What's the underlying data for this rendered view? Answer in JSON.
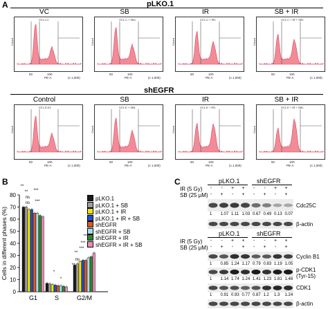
{
  "panel_a": {
    "letter": "A",
    "plko_title": "pLKO.1",
    "shegfr_title": "shEGFR",
    "x_axis_label": "PE-A",
    "x_axis_scale": "(x 1,000)",
    "y_axis_label": "Count",
    "x_ticks": [
      "50",
      "100"
    ],
    "plko_plots": [
      {
        "title": "VC",
        "gate": "VC1-C1"
      },
      {
        "title": "SB",
        "gate": "VC1-C + SB1"
      },
      {
        "title": "IR",
        "gate": "VC1-C + IR1"
      },
      {
        "title": "SB + IR",
        "gate": "VC1-C + IR + SB1"
      }
    ],
    "shegfr_plots": [
      {
        "title": "Control",
        "gate": "VC1-E-E1"
      },
      {
        "title": "SB",
        "gate": "VC1-E + SB1"
      },
      {
        "title": "IR",
        "gate": "VC1-E + IR1"
      },
      {
        "title": "SB + IR",
        "gate": "VC1-E + IR + SB1"
      }
    ]
  },
  "panel_b": {
    "letter": "B",
    "chart_data": {
      "type": "bar",
      "ylabel": "Cells in different phases (%)",
      "categories": [
        "G1",
        "S",
        "G2/M"
      ],
      "ylim": [
        0,
        80
      ],
      "yticks": [
        "0",
        "10",
        "20",
        "30",
        "40",
        "50",
        "60",
        "70",
        "80"
      ],
      "series": [
        {
          "name": "pLKO.1",
          "color": "#1a1a1a",
          "values": [
            70,
            7,
            22
          ]
        },
        {
          "name": "pLKO.1 + SB",
          "color": "#9e9e9e",
          "values": [
            70,
            6.5,
            23
          ]
        },
        {
          "name": "pLKO.1 + IR",
          "color": "#f2e500",
          "values": [
            68,
            6,
            25
          ]
        },
        {
          "name": "pLKO.1 + IR + SB",
          "color": "#1f4fd1",
          "values": [
            68,
            5.5,
            26
          ]
        },
        {
          "name": "shEGFR",
          "color": "#e05a1a",
          "values": [
            65,
            5,
            26
          ]
        },
        {
          "name": "shEGFR + SB",
          "color": "#a8dcef",
          "values": [
            65,
            5,
            28
          ]
        },
        {
          "name": "shEGFR + IR",
          "color": "#2d8a2d",
          "values": [
            63,
            4.5,
            29
          ]
        },
        {
          "name": "shEGFR + IR + SB",
          "color": "#f08ab8",
          "values": [
            62,
            4,
            32
          ]
        }
      ],
      "annotations": [
        "**",
        "**",
        "*",
        "ns",
        "ns",
        "***",
        "***",
        "*",
        "**",
        "***",
        "***",
        "ns",
        "**",
        "***"
      ]
    }
  },
  "panel_c": {
    "letter": "C",
    "top": {
      "group1": "pLKO.1",
      "group2": "shEGFR",
      "ir_label": "IR (5 Gy)",
      "sb_label": "SB (25 μM)",
      "ir_signs": [
        "-",
        "-",
        "+",
        "+",
        "-",
        "-",
        "+",
        "+"
      ],
      "sb_signs": [
        "-",
        "+",
        "-",
        "+",
        "-",
        "+",
        "-",
        "+"
      ],
      "blot1_label": "Cdc25C",
      "blot1_values": [
        "1",
        "1.07",
        "1.11",
        "1.03",
        "0.67",
        "0.49",
        "0.13",
        "0.07"
      ],
      "blot2_label": "β-actin"
    },
    "bottom": {
      "group1": "pLKO.1",
      "group2": "shEGFR",
      "ir_label": "IR (5 Gy)",
      "sb_label": "SB (25 μM)",
      "ir_signs": [
        "-",
        "-",
        "+",
        "+",
        "-",
        "-",
        "+",
        "+"
      ],
      "sb_signs": [
        "-",
        "+",
        "-",
        "+",
        "-",
        "+",
        "-",
        "+"
      ],
      "cyclin_label": "Cyclin B1",
      "cyclin_values": [
        "1",
        "0.85",
        "1.24",
        "1.17",
        "0.79",
        "0.83",
        "1.19",
        "1.05"
      ],
      "pcdk1_label": "p-CDK1",
      "pcdk1_sub": "(Tyr-15)",
      "pcdk1_values": [
        "1",
        "1.14",
        "1.74",
        "1.24",
        "1.41",
        "1.23",
        "1.81",
        "1.48"
      ],
      "cdk1_label": "CDK1",
      "cdk1_values": [
        "1",
        "0.91",
        "0.93",
        "0.77",
        "0.87",
        "1.2",
        "1.3",
        "1.24"
      ],
      "actin_label": "β-actin"
    }
  }
}
